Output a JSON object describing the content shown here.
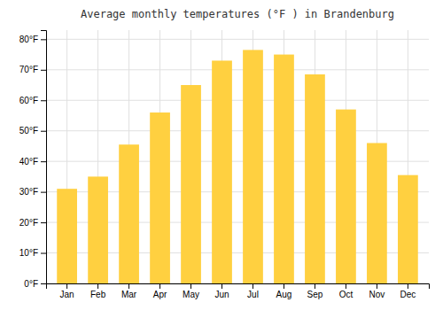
{
  "chart_data": {
    "type": "bar",
    "title": "Average monthly temperatures (°F ) in Brandenburg",
    "categories": [
      "Jan",
      "Feb",
      "Mar",
      "Apr",
      "May",
      "Jun",
      "Jul",
      "Aug",
      "Sep",
      "Oct",
      "Nov",
      "Dec"
    ],
    "values": [
      31,
      35,
      45.5,
      56,
      65,
      73,
      76.5,
      75,
      68.5,
      57,
      46,
      35.5
    ],
    "color": "#FFD040",
    "ylim": [
      0,
      83
    ],
    "yticks": [
      {
        "value": 0,
        "label": "0°F"
      },
      {
        "value": 10,
        "label": "10°F"
      },
      {
        "value": 20,
        "label": "20°F"
      },
      {
        "value": 30,
        "label": "30°F"
      },
      {
        "value": 40,
        "label": "40°F"
      },
      {
        "value": 50,
        "label": "50°F"
      },
      {
        "value": 60,
        "label": "60°F"
      },
      {
        "value": 70,
        "label": "70°F"
      },
      {
        "value": 80,
        "label": "80°F"
      }
    ],
    "grid": true
  }
}
